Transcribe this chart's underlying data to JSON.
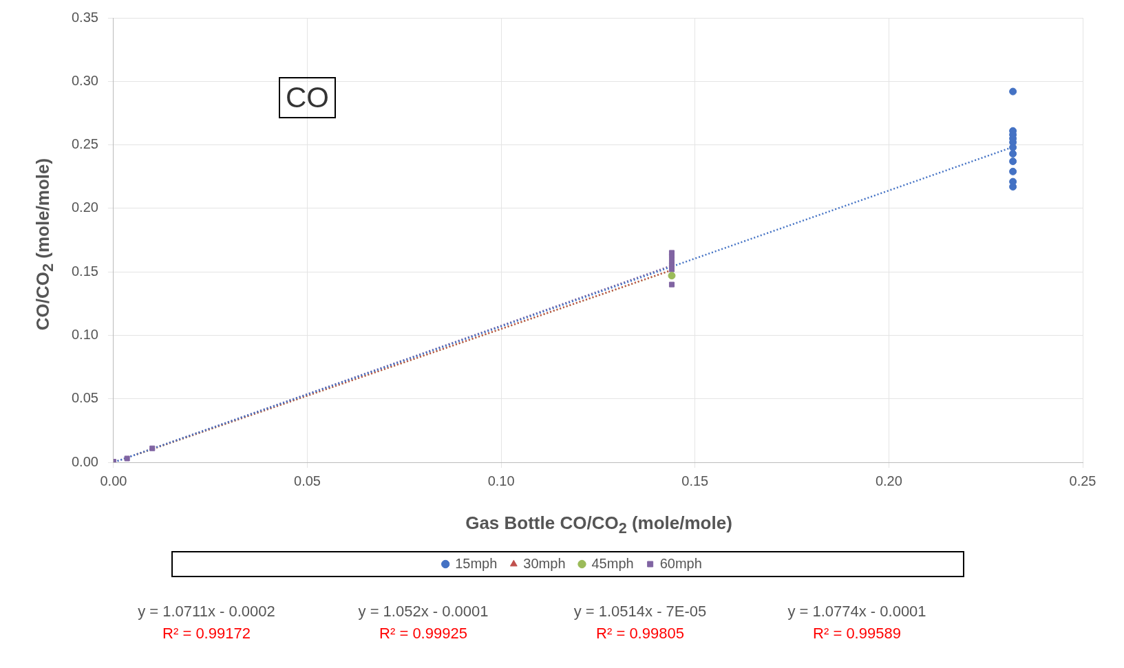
{
  "chart_data": {
    "type": "scatter",
    "xlabel": "Gas Bottle  CO/CO$_{2}$  (mole/mole)",
    "ylabel": "CO/CO$_{2}$  (mole/mole)",
    "xlim": [
      0,
      0.25
    ],
    "ylim": [
      0,
      0.35
    ],
    "xticks": [
      {
        "value": 0,
        "label": "0.00"
      },
      {
        "value": 0.05,
        "label": "0.05"
      },
      {
        "value": 0.1,
        "label": "0.10"
      },
      {
        "value": 0.15,
        "label": "0.15"
      },
      {
        "value": 0.2,
        "label": "0.20"
      },
      {
        "value": 0.25,
        "label": "0.25"
      }
    ],
    "yticks": [
      {
        "value": 0,
        "label": "0.00"
      },
      {
        "value": 0.05,
        "label": "0.05"
      },
      {
        "value": 0.1,
        "label": "0.10"
      },
      {
        "value": 0.15,
        "label": "0.15"
      },
      {
        "value": 0.2,
        "label": "0.20"
      },
      {
        "value": 0.25,
        "label": "0.25"
      },
      {
        "value": 0.3,
        "label": "0.30"
      },
      {
        "value": 0.35,
        "label": "0.35"
      }
    ],
    "grid": true,
    "legend": "bottom",
    "series": [
      {
        "name": "15mph",
        "color": "#4472c4",
        "marker": "circle",
        "x": [
          0.232,
          0.232,
          0.232,
          0.232,
          0.232,
          0.232,
          0.232,
          0.232,
          0.232,
          0.232,
          0.232
        ],
        "values": [
          0.292,
          0.261,
          0.258,
          0.255,
          0.252,
          0.248,
          0.243,
          0.237,
          0.229,
          0.221,
          0.217
        ]
      },
      {
        "name": "30mph",
        "color": "#c0504d",
        "marker": "triangle"
      },
      {
        "name": "45mph",
        "color": "#9bbb59",
        "marker": "circle",
        "x": [
          0.144
        ],
        "values": [
          0.147
        ]
      },
      {
        "name": "60mph",
        "color": "#8064a2",
        "marker": "square",
        "x": [
          0,
          0.0035,
          0.01,
          0.144,
          0.144,
          0.144,
          0.144,
          0.144,
          0.144
        ],
        "values": [
          0.0005,
          0.003,
          0.011,
          0.165,
          0.162,
          0.158,
          0.155,
          0.152,
          0.14
        ]
      },
      {
        "type": "line",
        "color": "#4472c4",
        "line_style": "dotted",
        "x": [
          0.001,
          0.232
        ],
        "values": [
          0.001,
          0.2483
        ]
      },
      {
        "type": "line",
        "color": "#c0504d",
        "line_style": "dotted",
        "x": [
          0.006,
          0.144
        ],
        "values": [
          0.0062,
          0.1514
        ]
      },
      {
        "type": "line",
        "color": "#9bbb59",
        "line_style": "dotted",
        "x": [
          0.006,
          0.144
        ],
        "values": [
          0.0062,
          0.1513
        ]
      },
      {
        "type": "line",
        "color": "#8064a2",
        "line_style": "dotted",
        "x": [
          0.001,
          0.144
        ],
        "values": [
          0.001,
          0.155
        ]
      }
    ],
    "annotations": [
      "CO",
      "y = 1.0711x - 0.0002",
      "R² = 0.99172",
      "y = 1.052x - 0.0001",
      "R² = 0.99925",
      "y = 1.0514x - 7E-05",
      "R² = 0.99805",
      "y = 1.0774x - 0.0001",
      "R² = 0.99589"
    ]
  }
}
